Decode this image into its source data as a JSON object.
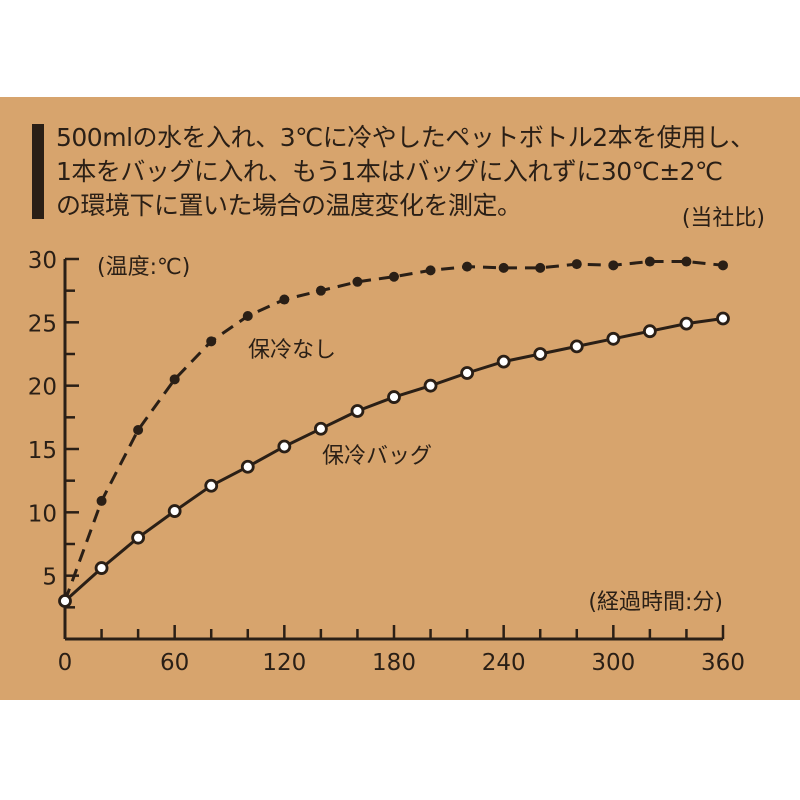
{
  "description": {
    "lines": [
      "500mlの水を入れ、3℃に冷やしたペットボトル2本を使用し、",
      "1本をバッグに入れ、もう1本はバッグに入れずに30℃±2℃",
      "の環境下に置いた場合の温度変化を測定。"
    ],
    "note": "(当社比)"
  },
  "colors": {
    "background": "#d7a46d",
    "ink": "#2a1f16",
    "marker_fill_open": "#ffffff"
  },
  "chart_data": {
    "type": "line",
    "title": "",
    "ylabel": "(温度:℃)",
    "xlabel": "(経過時間:分)",
    "xlim": [
      0,
      360
    ],
    "ylim": [
      0,
      30
    ],
    "x_ticks": [
      0,
      60,
      120,
      180,
      240,
      300,
      360
    ],
    "x_minor_step": 20,
    "y_ticks": [
      5,
      10,
      15,
      20,
      25,
      30
    ],
    "y_minor_step": 2.5,
    "grid": false,
    "x": [
      0,
      20,
      40,
      60,
      80,
      100,
      120,
      140,
      160,
      180,
      200,
      220,
      240,
      260,
      280,
      300,
      320,
      340,
      360
    ],
    "series": [
      {
        "name": "保冷なし",
        "style": "dashed",
        "marker": "filled-circle",
        "values": [
          3.0,
          10.9,
          16.5,
          20.5,
          23.5,
          25.5,
          26.8,
          27.5,
          28.2,
          28.6,
          29.1,
          29.4,
          29.3,
          29.3,
          29.6,
          29.5,
          29.8,
          29.8,
          29.5
        ]
      },
      {
        "name": "保冷バッグ",
        "style": "solid",
        "marker": "open-circle",
        "values": [
          3.0,
          5.6,
          8.0,
          10.1,
          12.1,
          13.6,
          15.2,
          16.6,
          18.0,
          19.1,
          20.0,
          21.0,
          21.9,
          22.5,
          23.1,
          23.7,
          24.3,
          24.9,
          25.3
        ]
      }
    ]
  }
}
